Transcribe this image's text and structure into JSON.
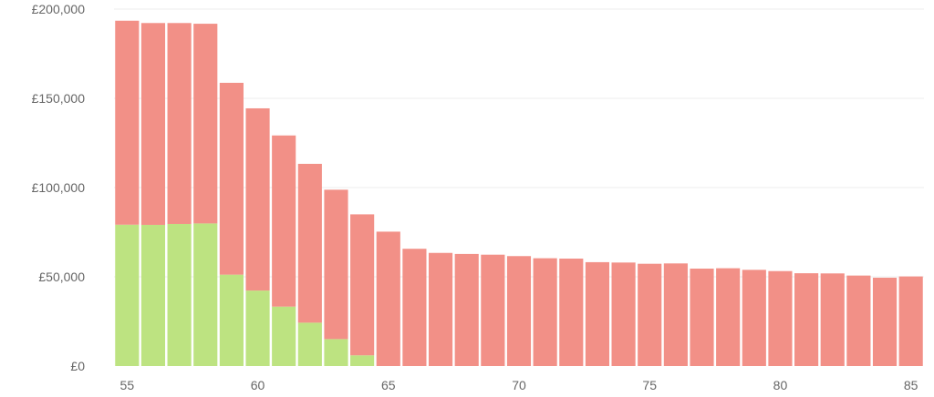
{
  "chart_data": {
    "type": "bar",
    "stacked": true,
    "title": "",
    "xlabel": "",
    "ylabel": "",
    "categories": [
      55,
      56,
      57,
      58,
      59,
      60,
      61,
      62,
      63,
      64,
      65,
      66,
      67,
      68,
      69,
      70,
      71,
      72,
      73,
      74,
      75,
      76,
      77,
      78,
      79,
      80,
      81,
      82,
      83,
      84,
      85
    ],
    "x_tick_labels": [
      "55",
      "60",
      "65",
      "70",
      "75",
      "80",
      "85"
    ],
    "y_tick_labels": [
      "£0",
      "£50,000",
      "£100,000",
      "£150,000",
      "£200,000"
    ],
    "y_ticks": [
      0,
      50000,
      100000,
      150000,
      200000
    ],
    "ylim": [
      0,
      200000
    ],
    "grid": true,
    "legend": "none",
    "series": [
      {
        "color": "#bde381",
        "values": [
          79200,
          79100,
          79600,
          79900,
          51200,
          42300,
          33300,
          24300,
          15100,
          6000,
          0,
          0,
          0,
          0,
          0,
          0,
          0,
          0,
          0,
          0,
          0,
          0,
          0,
          0,
          0,
          0,
          0,
          0,
          0,
          0,
          0
        ]
      },
      {
        "color": "#f29087",
        "values": [
          114300,
          113100,
          112600,
          111900,
          107500,
          102100,
          95900,
          89000,
          83700,
          79000,
          75300,
          65700,
          63400,
          62800,
          62400,
          61600,
          60400,
          60200,
          58200,
          58000,
          57300,
          57500,
          54600,
          54800,
          53900,
          53200,
          52000,
          51900,
          50700,
          49500,
          50200
        ]
      }
    ]
  }
}
